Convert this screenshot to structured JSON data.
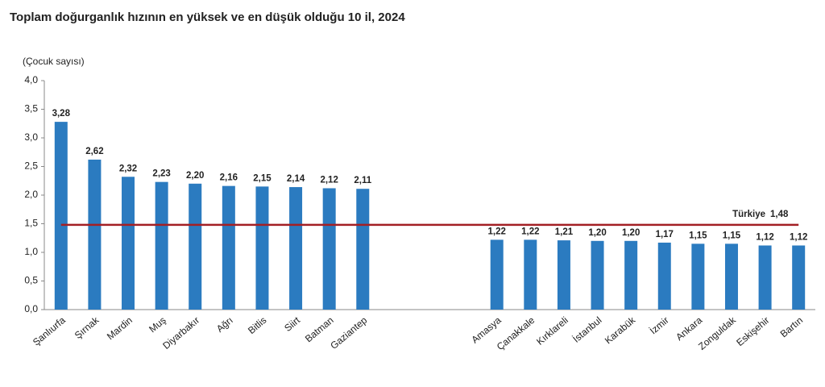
{
  "chart_data": {
    "type": "bar",
    "title": "Toplam doğurganlık hızının en yüksek ve en düşük olduğu 10 il, 2024",
    "y_label": "(Çocuk sayısı)",
    "categories": [
      "Şanlıurfa",
      "Şırnak",
      "Mardin",
      "Muş",
      "Diyarbakır",
      "Ağrı",
      "Bitlis",
      "Siirt",
      "Batman",
      "Gaziantep",
      null,
      null,
      null,
      "Amasya",
      "Çanakkale",
      "Kırklareli",
      "İstanbul",
      "Karabük",
      "İzmir",
      "Ankara",
      "Zonguldak",
      "Eskişehir",
      "Bartın"
    ],
    "values": [
      3.28,
      2.62,
      2.32,
      2.23,
      2.2,
      2.16,
      2.15,
      2.14,
      2.12,
      2.11,
      null,
      null,
      null,
      1.22,
      1.22,
      1.21,
      1.2,
      1.2,
      1.17,
      1.15,
      1.15,
      1.12,
      1.12
    ],
    "value_labels": [
      "3,28",
      "2,62",
      "2,32",
      "2,23",
      "2,20",
      "2,16",
      "2,15",
      "2,14",
      "2,12",
      "2,11",
      null,
      null,
      null,
      "1,22",
      "1,22",
      "1,21",
      "1,20",
      "1,20",
      "1,17",
      "1,15",
      "1,15",
      "1,12",
      "1,12"
    ],
    "color": "#2b7bc0",
    "ylim": [
      0,
      4
    ],
    "yticks": [
      {
        "value": 0,
        "label": "0,0"
      },
      {
        "value": 0.5,
        "label": "0,5"
      },
      {
        "value": 1,
        "label": "1,0"
      },
      {
        "value": 1.5,
        "label": "1,5"
      },
      {
        "value": 2,
        "label": "2,0"
      },
      {
        "value": 2.5,
        "label": "2,5"
      },
      {
        "value": 3,
        "label": "3,0"
      },
      {
        "value": 3.5,
        "label": "3,5"
      },
      {
        "value": 4,
        "label": "4,0"
      }
    ],
    "reference_line": {
      "label": "Türkiye",
      "value": 1.48,
      "value_label": "1,48",
      "color": "#a31f24"
    }
  }
}
